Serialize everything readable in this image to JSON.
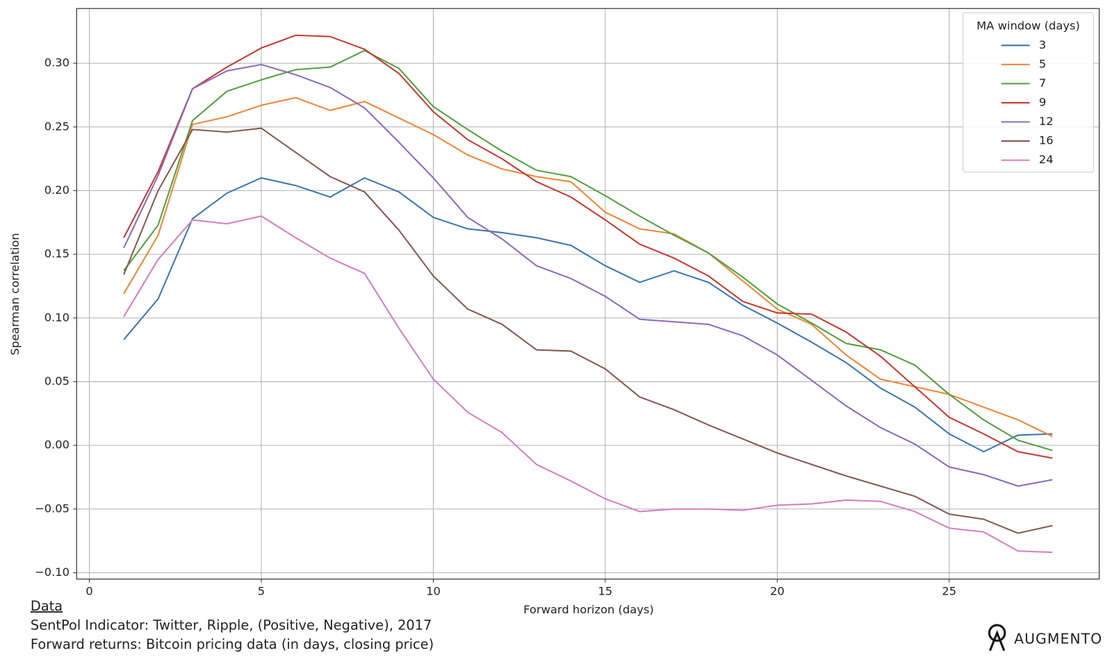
{
  "chart_data": {
    "type": "line",
    "xlabel": "Forward horizon (days)",
    "ylabel": "Spearman correlation",
    "legend_title": "MA window (days)",
    "legend": "upper right",
    "grid": true,
    "xlim": [
      -0.37,
      29.36
    ],
    "ylim": [
      -0.105,
      0.343
    ],
    "xticks": [
      0,
      5,
      10,
      15,
      20,
      25
    ],
    "yticks": [
      {
        "value": -0.1,
        "label": "−0.10"
      },
      {
        "value": -0.05,
        "label": "−0.05"
      },
      {
        "value": 0,
        "label": "0.00"
      },
      {
        "value": 0.05,
        "label": "0.05"
      },
      {
        "value": 0.1,
        "label": "0.10"
      },
      {
        "value": 0.15,
        "label": "0.15"
      },
      {
        "value": 0.2,
        "label": "0.20"
      },
      {
        "value": 0.25,
        "label": "0.25"
      },
      {
        "value": 0.3,
        "label": "0.30"
      }
    ],
    "x": [
      1,
      2,
      3,
      4,
      5,
      6,
      7,
      8,
      9,
      10,
      11,
      12,
      13,
      14,
      15,
      16,
      17,
      18,
      19,
      20,
      21,
      22,
      23,
      24,
      25,
      26,
      27,
      28
    ],
    "series": [
      {
        "name": "3",
        "color": "#3a76af",
        "values": [
          0.083,
          0.115,
          0.178,
          0.198,
          0.21,
          0.204,
          0.195,
          0.21,
          0.199,
          0.179,
          0.17,
          0.167,
          0.163,
          0.157,
          0.141,
          0.128,
          0.137,
          0.128,
          0.11,
          0.096,
          0.081,
          0.065,
          0.045,
          0.03,
          0.009,
          -0.005,
          0.008,
          0.009
        ]
      },
      {
        "name": "5",
        "color": "#ef8536",
        "values": [
          0.119,
          0.165,
          0.252,
          0.258,
          0.267,
          0.273,
          0.263,
          0.27,
          0.257,
          0.244,
          0.228,
          0.217,
          0.211,
          0.207,
          0.183,
          0.17,
          0.166,
          0.151,
          0.129,
          0.107,
          0.095,
          0.071,
          0.052,
          0.046,
          0.04,
          0.03,
          0.02,
          0.007
        ]
      },
      {
        "name": "7",
        "color": "#519e3e",
        "values": [
          0.137,
          0.173,
          0.255,
          0.278,
          0.287,
          0.295,
          0.297,
          0.31,
          0.296,
          0.266,
          0.248,
          0.231,
          0.216,
          0.211,
          0.196,
          0.18,
          0.165,
          0.151,
          0.132,
          0.111,
          0.096,
          0.08,
          0.075,
          0.063,
          0.04,
          0.02,
          0.004,
          -0.004
        ]
      },
      {
        "name": "9",
        "color": "#c53932",
        "values": [
          0.163,
          0.215,
          0.28,
          0.297,
          0.312,
          0.322,
          0.321,
          0.311,
          0.292,
          0.262,
          0.24,
          0.225,
          0.207,
          0.195,
          0.177,
          0.158,
          0.147,
          0.133,
          0.113,
          0.104,
          0.103,
          0.089,
          0.07,
          0.046,
          0.022,
          0.009,
          -0.005,
          -0.01
        ]
      },
      {
        "name": "12",
        "color": "#8d69b8",
        "values": [
          0.155,
          0.212,
          0.28,
          0.294,
          0.299,
          0.291,
          0.281,
          0.265,
          0.238,
          0.21,
          0.179,
          0.162,
          0.141,
          0.131,
          0.117,
          0.099,
          0.097,
          0.095,
          0.086,
          0.071,
          0.051,
          0.031,
          0.014,
          0.001,
          -0.017,
          -0.023,
          -0.032,
          -0.027
        ]
      },
      {
        "name": "16",
        "color": "#84584e",
        "values": [
          0.134,
          0.2,
          0.248,
          0.246,
          0.249,
          0.23,
          0.211,
          0.199,
          0.169,
          0.133,
          0.107,
          0.095,
          0.075,
          0.074,
          0.06,
          0.038,
          0.028,
          0.016,
          0.005,
          -0.006,
          -0.015,
          -0.024,
          -0.032,
          -0.04,
          -0.054,
          -0.058,
          -0.069,
          -0.063
        ]
      },
      {
        "name": "24",
        "color": "#d57dbf",
        "values": [
          0.101,
          0.146,
          0.177,
          0.174,
          0.18,
          0.163,
          0.147,
          0.135,
          0.092,
          0.052,
          0.026,
          0.01,
          -0.015,
          -0.028,
          -0.042,
          -0.052,
          -0.05,
          -0.05,
          -0.051,
          -0.047,
          -0.046,
          -0.043,
          -0.044,
          -0.052,
          -0.065,
          -0.068,
          -0.083,
          -0.084
        ]
      }
    ]
  },
  "footer": {
    "heading": "Data",
    "lines": [
      "SentPol Indicator: Twitter, Ripple, (Positive, Negative), 2017",
      "Forward returns: Bitcoin pricing data (in days, closing price)"
    ],
    "brand": "AUGMENTO"
  }
}
